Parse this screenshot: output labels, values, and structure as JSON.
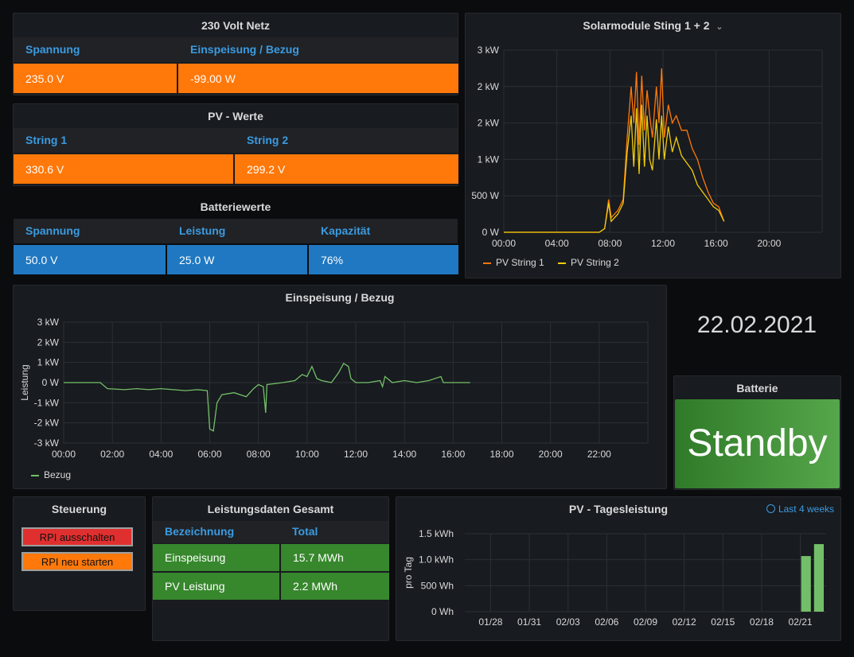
{
  "grid_panel": {
    "title": "230 Volt Netz",
    "headers": [
      "Spannung",
      "Einspeisung / Bezug"
    ],
    "values": [
      "235.0 V",
      "-99.00 W"
    ]
  },
  "pv_panel": {
    "title": "PV - Werte",
    "headers": [
      "String 1",
      "String 2"
    ],
    "values": [
      "330.6 V",
      "299.2 V"
    ]
  },
  "battery_values": {
    "title": "Batteriewerte",
    "headers": [
      "Spannung",
      "Leistung",
      "Kapazität"
    ],
    "values": [
      "50.0 V",
      "25.0 W",
      "76%"
    ]
  },
  "solar_chart": {
    "title": "Solarmodule Sting 1 + 2",
    "title_chevron": "⌄",
    "chart_data": {
      "type": "line",
      "x_ticks": [
        "00:00",
        "04:00",
        "08:00",
        "12:00",
        "16:00",
        "20:00"
      ],
      "y_ticks": [
        "0 W",
        "500 W",
        "1 kW",
        "2 kW",
        "2 kW",
        "3 kW"
      ],
      "x_range_hours": [
        0,
        24
      ],
      "ylim": [
        0,
        2.5
      ],
      "grid": true,
      "legend_placement": "bottom-left",
      "series": [
        {
          "name": "PV String 1",
          "color": "#ff780a",
          "points": [
            [
              0,
              0
            ],
            [
              7.2,
              0
            ],
            [
              7.6,
              0.05
            ],
            [
              7.9,
              0.45
            ],
            [
              8.1,
              0.2
            ],
            [
              8.6,
              0.3
            ],
            [
              9.0,
              0.45
            ],
            [
              9.3,
              1.3
            ],
            [
              9.6,
              2.0
            ],
            [
              9.8,
              1.5
            ],
            [
              10.0,
              2.2
            ],
            [
              10.2,
              1.2
            ],
            [
              10.4,
              2.15
            ],
            [
              10.6,
              1.4
            ],
            [
              10.8,
              1.95
            ],
            [
              11.0,
              1.6
            ],
            [
              11.2,
              1.3
            ],
            [
              11.5,
              2.0
            ],
            [
              11.7,
              1.5
            ],
            [
              11.9,
              2.25
            ],
            [
              12.1,
              1.3
            ],
            [
              12.4,
              1.75
            ],
            [
              12.7,
              1.5
            ],
            [
              13.0,
              1.6
            ],
            [
              13.4,
              1.4
            ],
            [
              13.8,
              1.4
            ],
            [
              14.2,
              1.15
            ],
            [
              14.6,
              1.0
            ],
            [
              15.0,
              0.75
            ],
            [
              15.4,
              0.55
            ],
            [
              15.8,
              0.4
            ],
            [
              16.2,
              0.35
            ],
            [
              16.6,
              0.15
            ]
          ]
        },
        {
          "name": "PV String 2",
          "color": "#f2cc0c",
          "points": [
            [
              0,
              0
            ],
            [
              7.2,
              0
            ],
            [
              7.6,
              0.05
            ],
            [
              7.9,
              0.4
            ],
            [
              8.1,
              0.15
            ],
            [
              8.6,
              0.25
            ],
            [
              9.0,
              0.4
            ],
            [
              9.3,
              1.1
            ],
            [
              9.6,
              1.6
            ],
            [
              9.8,
              0.9
            ],
            [
              10.0,
              1.7
            ],
            [
              10.2,
              0.8
            ],
            [
              10.4,
              1.75
            ],
            [
              10.6,
              0.9
            ],
            [
              10.8,
              1.6
            ],
            [
              11.0,
              1.0
            ],
            [
              11.2,
              0.85
            ],
            [
              11.5,
              1.55
            ],
            [
              11.7,
              1.0
            ],
            [
              11.9,
              1.6
            ],
            [
              12.1,
              1.0
            ],
            [
              12.4,
              1.45
            ],
            [
              12.7,
              1.1
            ],
            [
              13.0,
              1.3
            ],
            [
              13.4,
              1.05
            ],
            [
              13.8,
              0.95
            ],
            [
              14.2,
              0.85
            ],
            [
              14.6,
              0.65
            ],
            [
              15.0,
              0.55
            ],
            [
              15.4,
              0.45
            ],
            [
              15.8,
              0.35
            ],
            [
              16.2,
              0.3
            ],
            [
              16.6,
              0.15
            ]
          ]
        }
      ]
    }
  },
  "bezug_chart": {
    "title": "Einspeisung / Bezug",
    "chart_data": {
      "type": "line",
      "ylabel": "Leistung",
      "x_ticks": [
        "00:00",
        "02:00",
        "04:00",
        "06:00",
        "08:00",
        "10:00",
        "12:00",
        "14:00",
        "16:00",
        "18:00",
        "20:00",
        "22:00"
      ],
      "y_ticks": [
        "-3 kW",
        "-2 kW",
        "-1 kW",
        "0 W",
        "1 kW",
        "2 kW",
        "3 kW"
      ],
      "x_range_hours": [
        0,
        24
      ],
      "ylim": [
        -3,
        3
      ],
      "grid": true,
      "legend_placement": "bottom-left",
      "series": [
        {
          "name": "Bezug",
          "color": "#73bf69",
          "points": [
            [
              0,
              0
            ],
            [
              1.5,
              0
            ],
            [
              1.8,
              -0.3
            ],
            [
              2.5,
              -0.35
            ],
            [
              3.0,
              -0.3
            ],
            [
              3.5,
              -0.35
            ],
            [
              4.0,
              -0.3
            ],
            [
              4.5,
              -0.35
            ],
            [
              5.0,
              -0.4
            ],
            [
              5.5,
              -0.35
            ],
            [
              5.9,
              -0.4
            ],
            [
              6.0,
              -2.3
            ],
            [
              6.15,
              -2.4
            ],
            [
              6.3,
              -1.0
            ],
            [
              6.5,
              -0.6
            ],
            [
              7.0,
              -0.5
            ],
            [
              7.5,
              -0.7
            ],
            [
              7.8,
              -0.3
            ],
            [
              8.0,
              -0.1
            ],
            [
              8.2,
              -0.2
            ],
            [
              8.3,
              -1.5
            ],
            [
              8.35,
              -0.1
            ],
            [
              9.0,
              0
            ],
            [
              9.5,
              0.1
            ],
            [
              9.8,
              0.4
            ],
            [
              10.0,
              0.3
            ],
            [
              10.2,
              0.8
            ],
            [
              10.4,
              0.2
            ],
            [
              10.6,
              0.1
            ],
            [
              11.0,
              0
            ],
            [
              11.3,
              0.5
            ],
            [
              11.5,
              0.95
            ],
            [
              11.7,
              0.8
            ],
            [
              11.8,
              0.2
            ],
            [
              12.0,
              0
            ],
            [
              12.5,
              0
            ],
            [
              13.0,
              0.1
            ],
            [
              13.1,
              -0.2
            ],
            [
              13.2,
              0.3
            ],
            [
              13.5,
              0
            ],
            [
              14.0,
              0.1
            ],
            [
              14.5,
              0
            ],
            [
              15.0,
              0.1
            ],
            [
              15.5,
              0.3
            ],
            [
              15.6,
              0
            ],
            [
              16.0,
              0
            ],
            [
              16.7,
              0
            ]
          ]
        }
      ]
    }
  },
  "date_display": "22.02.2021",
  "battery_status": {
    "title": "Batterie",
    "value": "Standby"
  },
  "control_panel": {
    "title": "Steuerung",
    "buttons": [
      "RPI ausschalten",
      "RPI neu starten"
    ]
  },
  "total_panel": {
    "title": "Leistungsdaten Gesamt",
    "headers": [
      "Bezeichnung",
      "Total"
    ],
    "rows": [
      [
        "Einspeisung",
        "15.7 MWh"
      ],
      [
        "PV Leistung",
        "2.2 MWh"
      ]
    ]
  },
  "daily_chart": {
    "title": "PV - Tagesleistung",
    "time_range": "Last 4 weeks",
    "chart_data": {
      "type": "bar",
      "ylabel": "pro Tag",
      "x_ticks": [
        "01/28",
        "01/31",
        "02/03",
        "02/06",
        "02/09",
        "02/12",
        "02/15",
        "02/18",
        "02/21"
      ],
      "y_ticks": [
        "0 Wh",
        "500 Wh",
        "1.0 kWh",
        "1.5 kWh"
      ],
      "ylim": [
        0,
        1.5
      ],
      "grid": true,
      "bar_color": "#73bf69",
      "bars": [
        {
          "day_index": 26,
          "value": 1.07
        },
        {
          "day_index": 27,
          "value": 1.3
        }
      ]
    }
  },
  "colors": {
    "panel_bg": "#181b1f",
    "orange": "#ff780a",
    "blue": "#1f78c1",
    "green": "#37872d",
    "header_text": "#3b9be0"
  }
}
